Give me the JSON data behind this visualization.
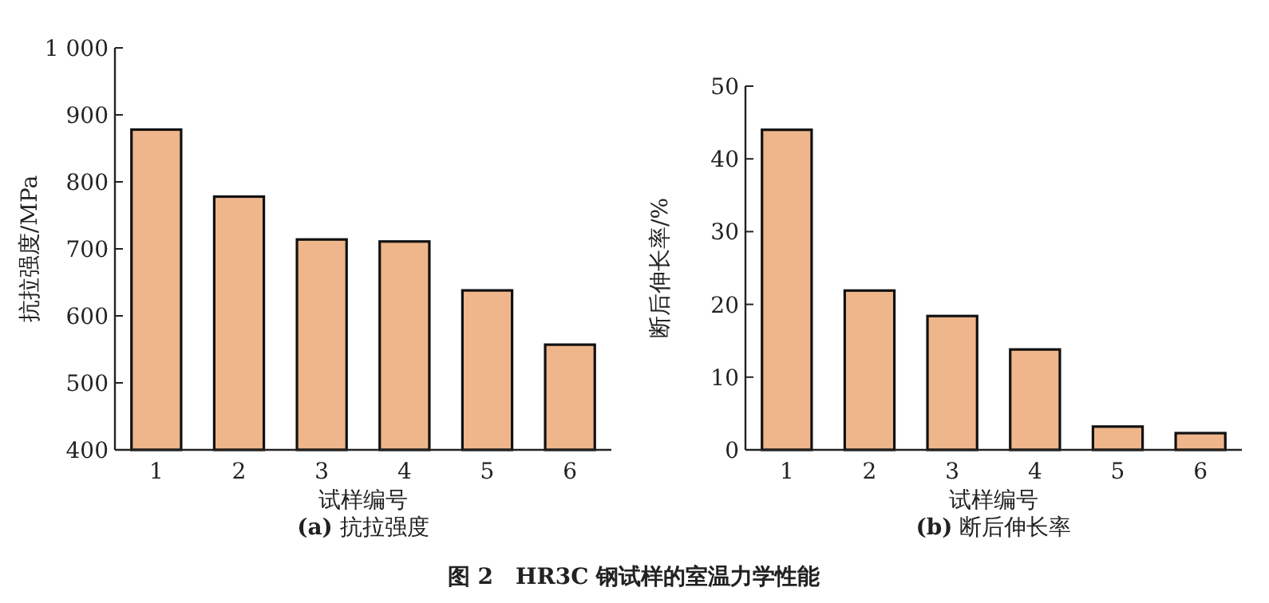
{
  "chart_data": [
    {
      "type": "bar",
      "title": "**(a)** 抗拉强度",
      "xlabel": "试样编号",
      "ylabel": "抗拉强度/MPa",
      "categories": [
        "1",
        "2",
        "3",
        "4",
        "5",
        "6"
      ],
      "values": [
        878,
        778,
        714,
        711,
        638,
        557
      ],
      "color": "#eeb68a",
      "ylim": [
        400,
        1000
      ],
      "yticks": [
        400,
        500,
        600,
        700,
        800,
        900,
        {
          "value": 1000,
          "label": "1 000"
        }
      ],
      "grid": false,
      "annotations": [
        "**图 2　HR3C 钢试样的室温力学性能**"
      ]
    },
    {
      "type": "bar",
      "title": "**(b)** 断后伸长率",
      "xlabel": "试样编号",
      "ylabel": "断后伸长率/%",
      "categories": [
        "1",
        "2",
        "3",
        "4",
        "5",
        "6"
      ],
      "values": [
        44.0,
        21.9,
        18.4,
        13.8,
        3.2,
        2.3
      ],
      "color": "#eeb68a",
      "ylim": [
        0,
        50
      ],
      "yticks": [
        0,
        10,
        20,
        30,
        40,
        50
      ],
      "grid": false
    }
  ]
}
